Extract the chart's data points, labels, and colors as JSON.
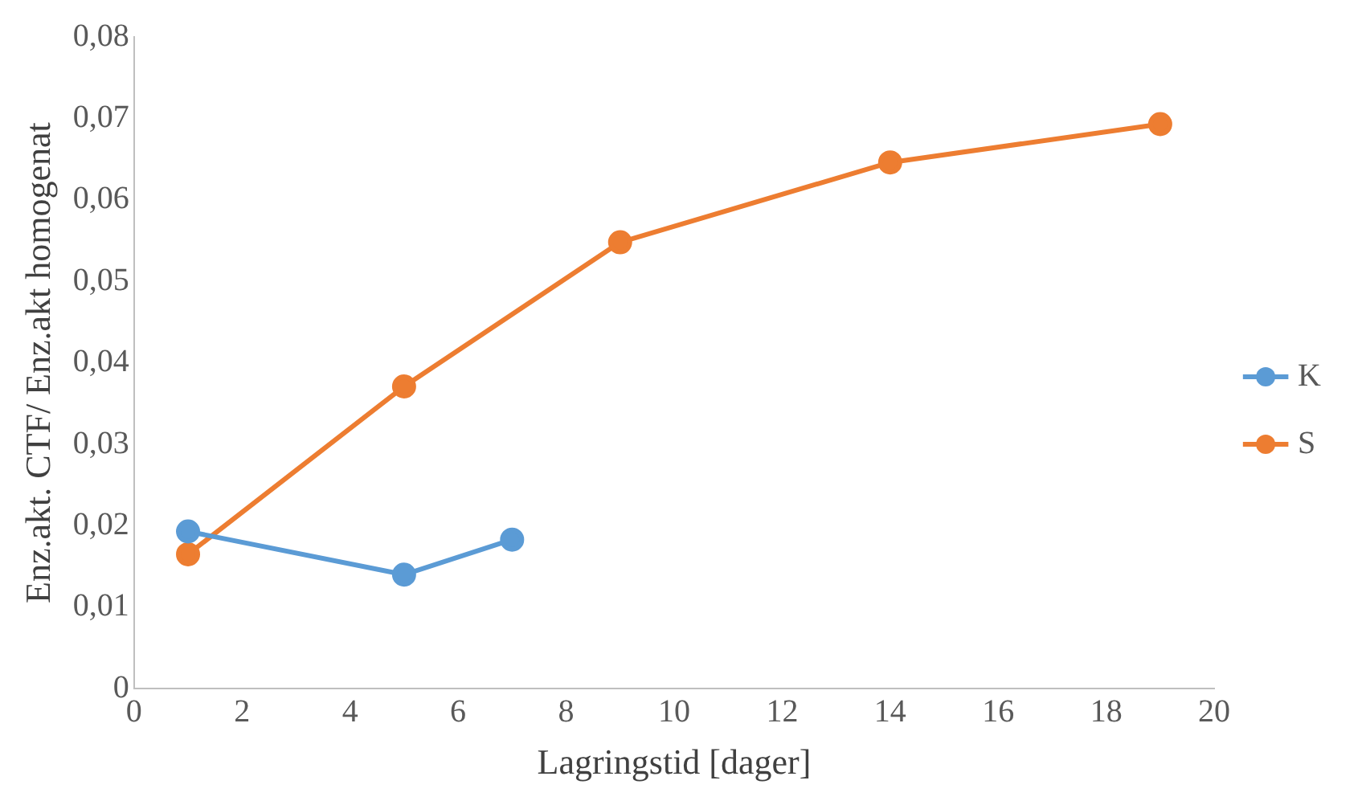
{
  "chart_data": {
    "type": "line",
    "xlabel": "Lagringstid [dager]",
    "ylabel": "Enz.akt. CTF/ Enz.akt homogenat",
    "series": [
      {
        "name": "K",
        "color": "#5b9bd5",
        "x": [
          1,
          5,
          7
        ],
        "values": [
          0.0193,
          0.014,
          0.0183
        ]
      },
      {
        "name": "S",
        "color": "#ed7d31",
        "x": [
          1,
          5,
          9,
          14,
          19
        ],
        "values": [
          0.0165,
          0.0371,
          0.0548,
          0.0646,
          0.0693
        ]
      }
    ],
    "xlim": [
      0,
      20
    ],
    "xticks": [
      0,
      2,
      4,
      6,
      8,
      10,
      12,
      14,
      16,
      18,
      20
    ],
    "ylim": [
      0,
      0.08
    ],
    "yticks": [
      {
        "value": 0,
        "label": "0"
      },
      {
        "value": 0.01,
        "label": "0,01"
      },
      {
        "value": 0.02,
        "label": "0,02"
      },
      {
        "value": 0.03,
        "label": "0,03"
      },
      {
        "value": 0.04,
        "label": "0,04"
      },
      {
        "value": 0.05,
        "label": "0,05"
      },
      {
        "value": 0.06,
        "label": "0,06"
      },
      {
        "value": 0.07,
        "label": "0,07"
      },
      {
        "value": 0.08,
        "label": "0,08"
      }
    ],
    "grid": false,
    "legend": "right",
    "marker": "circle",
    "line_style": "solid"
  }
}
